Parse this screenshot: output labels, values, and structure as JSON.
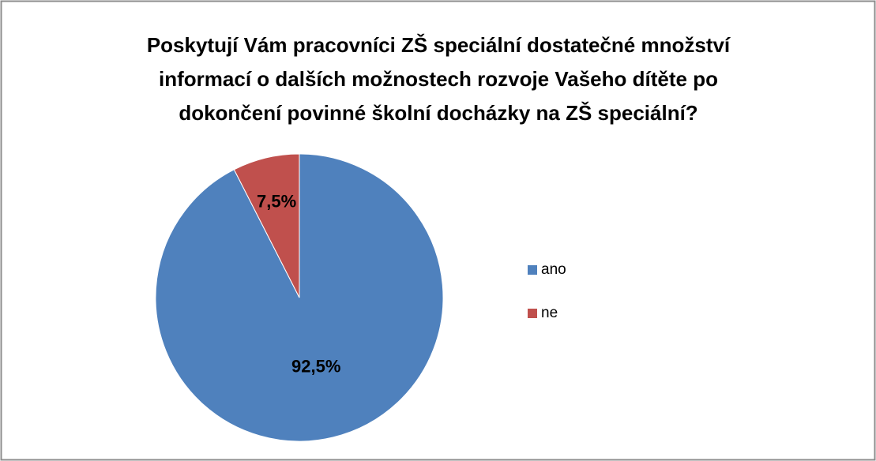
{
  "chart_data": {
    "type": "pie",
    "title": "Poskytují Vám pracovníci ZŠ speciální dostatečné množství informací o dalších možnostech rozvoje Vašeho dítěte po dokončení povinné školní docházky na ZŠ speciální?",
    "categories": [
      "ano",
      "ne"
    ],
    "values": [
      92.5,
      7.5
    ],
    "value_labels": [
      "92,5%",
      "7,5%"
    ],
    "colors": [
      "#4f81bd",
      "#c0504d"
    ],
    "legend": "right"
  }
}
